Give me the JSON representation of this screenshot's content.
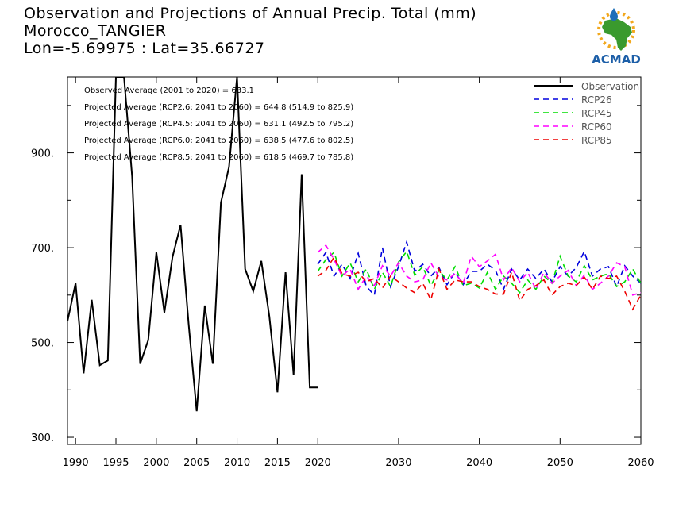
{
  "header": {
    "title": "Observation and Projections of Annual Precip. Total (mm)",
    "location": "Morocco_TANGIER",
    "coords": "Lon=-5.69975 : Lat=35.66727"
  },
  "logo": {
    "text": "ACMAD",
    "colors": {
      "africa": "#3a9a2e",
      "sun": "#f2a81d",
      "drop": "#1d6fb8",
      "text": "#1d5fa8"
    }
  },
  "chart_data": {
    "type": "line",
    "xlim": [
      1989,
      2060
    ],
    "ylim": [
      285,
      1060
    ],
    "x_ticks": [
      1990,
      1995,
      2000,
      2005,
      2010,
      2015,
      2020,
      2030,
      2040,
      2050,
      2060
    ],
    "y_ticks": [
      {
        "value": 300,
        "label": "300."
      },
      {
        "value": 500,
        "label": "500."
      },
      {
        "value": 700,
        "label": "700."
      },
      {
        "value": 900,
        "label": "900."
      }
    ],
    "y_minor_ticks": [
      400,
      600,
      800,
      1000
    ],
    "annotations": [
      "Observed Average (2001 to 2020) = 633.1",
      "Projected Average (RCP2.6: 2041 to 2060) = 644.8 (514.9 to 825.9)",
      "Projected Average (RCP4.5: 2041 to 2060) = 631.1 (492.5 to 795.2)",
      "Projected Average (RCP6.0: 2041 to 2060) = 638.5 (477.6 to 802.5)",
      "Projected Average (RCP8.5: 2041 to 2060) = 618.5 (469.7 to 785.8)"
    ],
    "legend_position": "top-right",
    "observation": {
      "name": "Observation",
      "color": "#000000",
      "x": [
        1989,
        1990,
        1991,
        1992,
        1993,
        1994,
        1995,
        1996,
        1997,
        1998,
        1999,
        2000,
        2001,
        2002,
        2003,
        2004,
        2005,
        2006,
        2007,
        2008,
        2009,
        2010,
        2011,
        2012,
        2013,
        2014,
        2015,
        2016,
        2017,
        2018,
        2019,
        2020
      ],
      "y": [
        545,
        625,
        435,
        590,
        452,
        462,
        1060,
        1060,
        850,
        455,
        505,
        690,
        563,
        680,
        748,
        540,
        355,
        578,
        455,
        795,
        870,
        1060,
        655,
        608,
        672,
        555,
        395,
        648,
        432,
        855,
        405,
        405
      ]
    },
    "series": [
      {
        "name": "RCP26",
        "color": "#0000dd",
        "x": [
          2020,
          2021,
          2022,
          2023,
          2024,
          2025,
          2026,
          2027,
          2028,
          2029,
          2030,
          2031,
          2032,
          2033,
          2034,
          2035,
          2036,
          2037,
          2038,
          2039,
          2040,
          2041,
          2042,
          2043,
          2044,
          2045,
          2046,
          2047,
          2048,
          2049,
          2050,
          2051,
          2052,
          2053,
          2054,
          2055,
          2056,
          2057,
          2058,
          2059,
          2060
        ],
        "y": [
          665,
          690,
          640,
          665,
          635,
          688,
          618,
          600,
          700,
          618,
          660,
          712,
          650,
          665,
          640,
          658,
          622,
          648,
          622,
          650,
          650,
          665,
          652,
          612,
          655,
          632,
          655,
          635,
          655,
          628,
          660,
          640,
          658,
          692,
          640,
          655,
          660,
          618,
          662,
          640,
          625
        ]
      },
      {
        "name": "RCP45",
        "color": "#00dd00",
        "x": [
          2020,
          2021,
          2022,
          2023,
          2024,
          2025,
          2026,
          2027,
          2028,
          2029,
          2030,
          2031,
          2032,
          2033,
          2034,
          2035,
          2036,
          2037,
          2038,
          2039,
          2040,
          2041,
          2042,
          2043,
          2044,
          2045,
          2046,
          2047,
          2048,
          2049,
          2050,
          2051,
          2052,
          2053,
          2054,
          2055,
          2056,
          2057,
          2058,
          2059,
          2060
        ],
        "y": [
          650,
          675,
          690,
          640,
          668,
          628,
          655,
          612,
          648,
          618,
          670,
          692,
          642,
          660,
          620,
          652,
          632,
          660,
          620,
          625,
          615,
          648,
          612,
          640,
          625,
          605,
          632,
          612,
          640,
          625,
          682,
          640,
          628,
          662,
          632,
          640,
          645,
          618,
          628,
          655,
          625
        ]
      },
      {
        "name": "RCP60",
        "color": "#ff00ff",
        "x": [
          2020,
          2021,
          2022,
          2023,
          2024,
          2025,
          2026,
          2027,
          2028,
          2029,
          2030,
          2031,
          2032,
          2033,
          2034,
          2035,
          2036,
          2037,
          2038,
          2039,
          2040,
          2041,
          2042,
          2043,
          2044,
          2045,
          2046,
          2047,
          2048,
          2049,
          2050,
          2051,
          2052,
          2053,
          2054,
          2055,
          2056,
          2057,
          2058,
          2059,
          2060
        ],
        "y": [
          690,
          705,
          675,
          640,
          655,
          612,
          640,
          620,
          662,
          640,
          668,
          640,
          628,
          632,
          668,
          638,
          632,
          645,
          625,
          682,
          660,
          672,
          686,
          632,
          658,
          628,
          648,
          612,
          648,
          625,
          640,
          652,
          620,
          642,
          612,
          625,
          640,
          668,
          660,
          600,
          605
        ]
      },
      {
        "name": "RCP85",
        "color": "#ee0000",
        "x": [
          2020,
          2021,
          2022,
          2023,
          2024,
          2025,
          2026,
          2027,
          2028,
          2029,
          2030,
          2031,
          2032,
          2033,
          2034,
          2035,
          2036,
          2037,
          2038,
          2039,
          2040,
          2041,
          2042,
          2043,
          2044,
          2045,
          2046,
          2047,
          2048,
          2049,
          2050,
          2051,
          2052,
          2053,
          2054,
          2055,
          2056,
          2057,
          2058,
          2059,
          2060
        ],
        "y": [
          640,
          652,
          680,
          645,
          640,
          648,
          628,
          635,
          615,
          640,
          628,
          615,
          605,
          625,
          590,
          655,
          612,
          632,
          628,
          628,
          618,
          612,
          602,
          602,
          648,
          588,
          612,
          620,
          632,
          600,
          618,
          625,
          620,
          638,
          612,
          640,
          635,
          640,
          608,
          570,
          600
        ]
      }
    ]
  }
}
